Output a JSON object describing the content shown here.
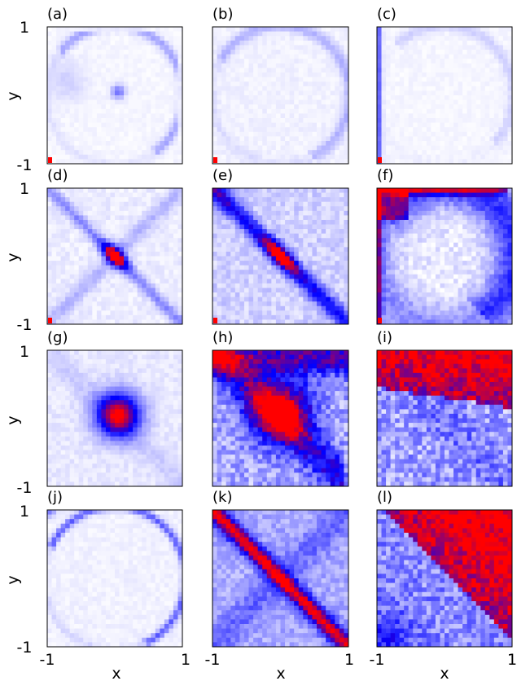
{
  "chart_data": {
    "type": "heatmap",
    "layout": {
      "rows": 4,
      "cols": 3
    },
    "x_range": [
      -1,
      1
    ],
    "y_range": [
      -1,
      1
    ],
    "xlabel": "x",
    "ylabel": "y",
    "x_tick_labels": [
      "-1",
      "1"
    ],
    "y_tick_labels": [
      "1",
      "-1"
    ],
    "colormap": {
      "low": "#ffffff",
      "mid": "#0000ff",
      "high": "#ff0000"
    },
    "panels": [
      {
        "label": "(a)",
        "pattern": "arc-node",
        "intensity": 0.25
      },
      {
        "label": "(b)",
        "pattern": "faint-arc",
        "intensity": 0.15
      },
      {
        "label": "(c)",
        "pattern": "left-edge",
        "intensity": 0.2
      },
      {
        "label": "(d)",
        "pattern": "blob-cross",
        "intensity": 0.55
      },
      {
        "label": "(e)",
        "pattern": "diag-blob",
        "intensity": 0.75
      },
      {
        "label": "(f)",
        "pattern": "corner-arc",
        "intensity": 0.85
      },
      {
        "label": "(g)",
        "pattern": "center-blob",
        "intensity": 0.6
      },
      {
        "label": "(h)",
        "pattern": "triangle-blob",
        "intensity": 0.85
      },
      {
        "label": "(i)",
        "pattern": "upper-fill",
        "intensity": 0.9
      },
      {
        "label": "(j)",
        "pattern": "thin-arc",
        "intensity": 0.35
      },
      {
        "label": "(k)",
        "pattern": "diag-band",
        "intensity": 0.9
      },
      {
        "label": "(l)",
        "pattern": "upper-right-fill",
        "intensity": 0.95
      }
    ]
  }
}
